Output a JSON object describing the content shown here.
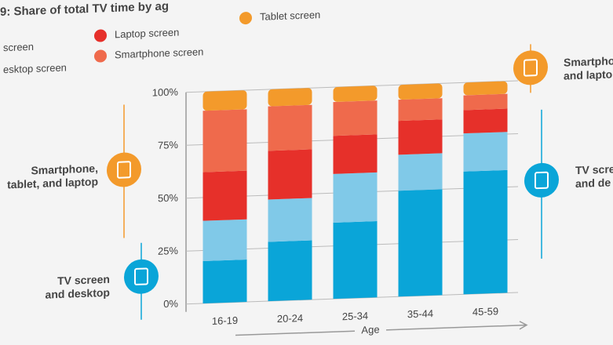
{
  "chart_data": {
    "type": "stacked_bar",
    "title": "9: Share of total TV time by ag",
    "x_label": "Age",
    "categories": [
      "16-19",
      "20-24",
      "25-34",
      "35-44",
      "45-59"
    ],
    "series": [
      {
        "name": "screen",
        "color": "#0aa5d8",
        "values": [
          20,
          28,
          36,
          50,
          58
        ]
      },
      {
        "name": "esktop screen",
        "color": "#80c9e8",
        "values": [
          19,
          20,
          23,
          17,
          18
        ]
      },
      {
        "name": "Laptop screen",
        "color": "#e6302a",
        "values": [
          23,
          23,
          18,
          16,
          11
        ]
      },
      {
        "name": "Smartphone screen",
        "color": "#ef6a4c",
        "values": [
          29,
          21,
          16,
          10,
          7
        ]
      },
      {
        "name": "Tablet screen",
        "color": "#f39a2b",
        "values": [
          9,
          8,
          7,
          7,
          6
        ]
      }
    ],
    "ylim": [
      0,
      100
    ],
    "yticks": [
      {
        "value": 0,
        "label": "0%"
      },
      {
        "value": 25,
        "label": "25%"
      },
      {
        "value": 50,
        "label": "50%"
      },
      {
        "value": 75,
        "label": "75%"
      },
      {
        "value": 100,
        "label": "100%"
      }
    ],
    "grid": true,
    "annotations": [
      {
        "lines": [
          "Smartphone,",
          "tablet, and laptop"
        ],
        "color": "#f39a2b"
      },
      {
        "lines": [
          "TV screen",
          "and desktop"
        ],
        "color": "#0aa5d8"
      },
      {
        "lines": [
          "Smartphon",
          "and lapto"
        ],
        "color": "#f39a2b"
      },
      {
        "lines": [
          "TV scre",
          "and de"
        ],
        "color": "#0aa5d8"
      }
    ]
  }
}
